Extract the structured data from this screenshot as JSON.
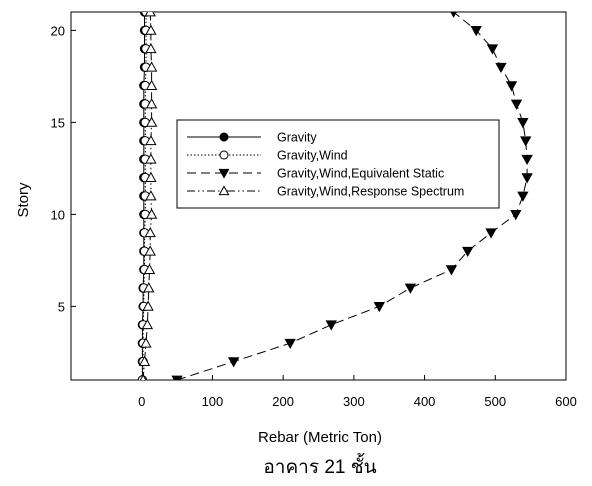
{
  "chart_data": {
    "type": "line",
    "title": "",
    "caption": "อาคาร 21 ชั้น",
    "xlabel": "Rebar (Metric Ton)",
    "ylabel": "Story",
    "xlim": [
      -100,
      600
    ],
    "ylim": [
      1,
      21
    ],
    "x_ticks": [
      0,
      100,
      200,
      300,
      400,
      500,
      600
    ],
    "y_ticks": [
      5,
      10,
      15,
      20
    ],
    "grid": false,
    "legend_position": "center-left",
    "series": [
      {
        "name": "Gravity",
        "marker": "filled-circle",
        "dash": "solid",
        "points": [
          [
            1,
            1
          ],
          [
            1,
            2
          ],
          [
            1,
            3
          ],
          [
            1,
            4
          ],
          [
            2,
            5
          ],
          [
            2,
            6
          ],
          [
            3,
            7
          ],
          [
            3,
            8
          ],
          [
            3,
            9
          ],
          [
            3,
            10
          ],
          [
            3,
            11
          ],
          [
            3,
            12
          ],
          [
            3,
            13
          ],
          [
            3,
            14
          ],
          [
            3,
            15
          ],
          [
            3,
            16
          ],
          [
            3,
            17
          ],
          [
            4,
            18
          ],
          [
            4,
            19
          ],
          [
            4,
            20
          ],
          [
            4,
            21
          ]
        ]
      },
      {
        "name": "Gravity,Wind",
        "marker": "open-circle",
        "dash": "dotted",
        "points": [
          [
            1,
            1
          ],
          [
            2,
            2
          ],
          [
            2,
            3
          ],
          [
            2,
            4
          ],
          [
            3,
            5
          ],
          [
            3,
            6
          ],
          [
            4,
            7
          ],
          [
            4,
            8
          ],
          [
            4,
            9
          ],
          [
            5,
            10
          ],
          [
            5,
            11
          ],
          [
            5,
            12
          ],
          [
            5,
            13
          ],
          [
            5,
            14
          ],
          [
            5,
            15
          ],
          [
            5,
            16
          ],
          [
            5,
            17
          ],
          [
            6,
            18
          ],
          [
            6,
            19
          ],
          [
            6,
            20
          ],
          [
            6,
            21
          ]
        ]
      },
      {
        "name": "Gravity,Wind,Equivalent Static",
        "marker": "filled-triangle-down",
        "dash": "dashed",
        "points": [
          [
            50,
            1
          ],
          [
            130,
            2
          ],
          [
            210,
            3
          ],
          [
            268,
            4
          ],
          [
            336,
            5
          ],
          [
            380,
            6
          ],
          [
            438,
            7
          ],
          [
            461,
            8
          ],
          [
            494,
            9
          ],
          [
            529,
            10
          ],
          [
            539,
            11
          ],
          [
            545,
            12
          ],
          [
            545,
            13
          ],
          [
            543,
            14
          ],
          [
            539,
            15
          ],
          [
            530,
            16
          ],
          [
            523,
            17
          ],
          [
            508,
            18
          ],
          [
            496,
            19
          ],
          [
            473,
            20
          ],
          [
            441,
            21
          ]
        ]
      },
      {
        "name": "Gravity,Wind,Response Spectrum",
        "marker": "open-triangle-up",
        "dash": "dash-dot-dot",
        "points": [
          [
            2,
            1
          ],
          [
            4,
            2
          ],
          [
            6,
            3
          ],
          [
            8,
            4
          ],
          [
            9,
            5
          ],
          [
            10,
            6
          ],
          [
            11,
            7
          ],
          [
            12,
            8
          ],
          [
            12,
            9
          ],
          [
            14,
            10
          ],
          [
            13,
            11
          ],
          [
            13,
            12
          ],
          [
            13,
            13
          ],
          [
            13,
            14
          ],
          [
            14,
            15
          ],
          [
            14,
            16
          ],
          [
            14,
            17
          ],
          [
            14,
            18
          ],
          [
            13,
            19
          ],
          [
            13,
            20
          ],
          [
            12,
            21
          ]
        ]
      }
    ]
  }
}
